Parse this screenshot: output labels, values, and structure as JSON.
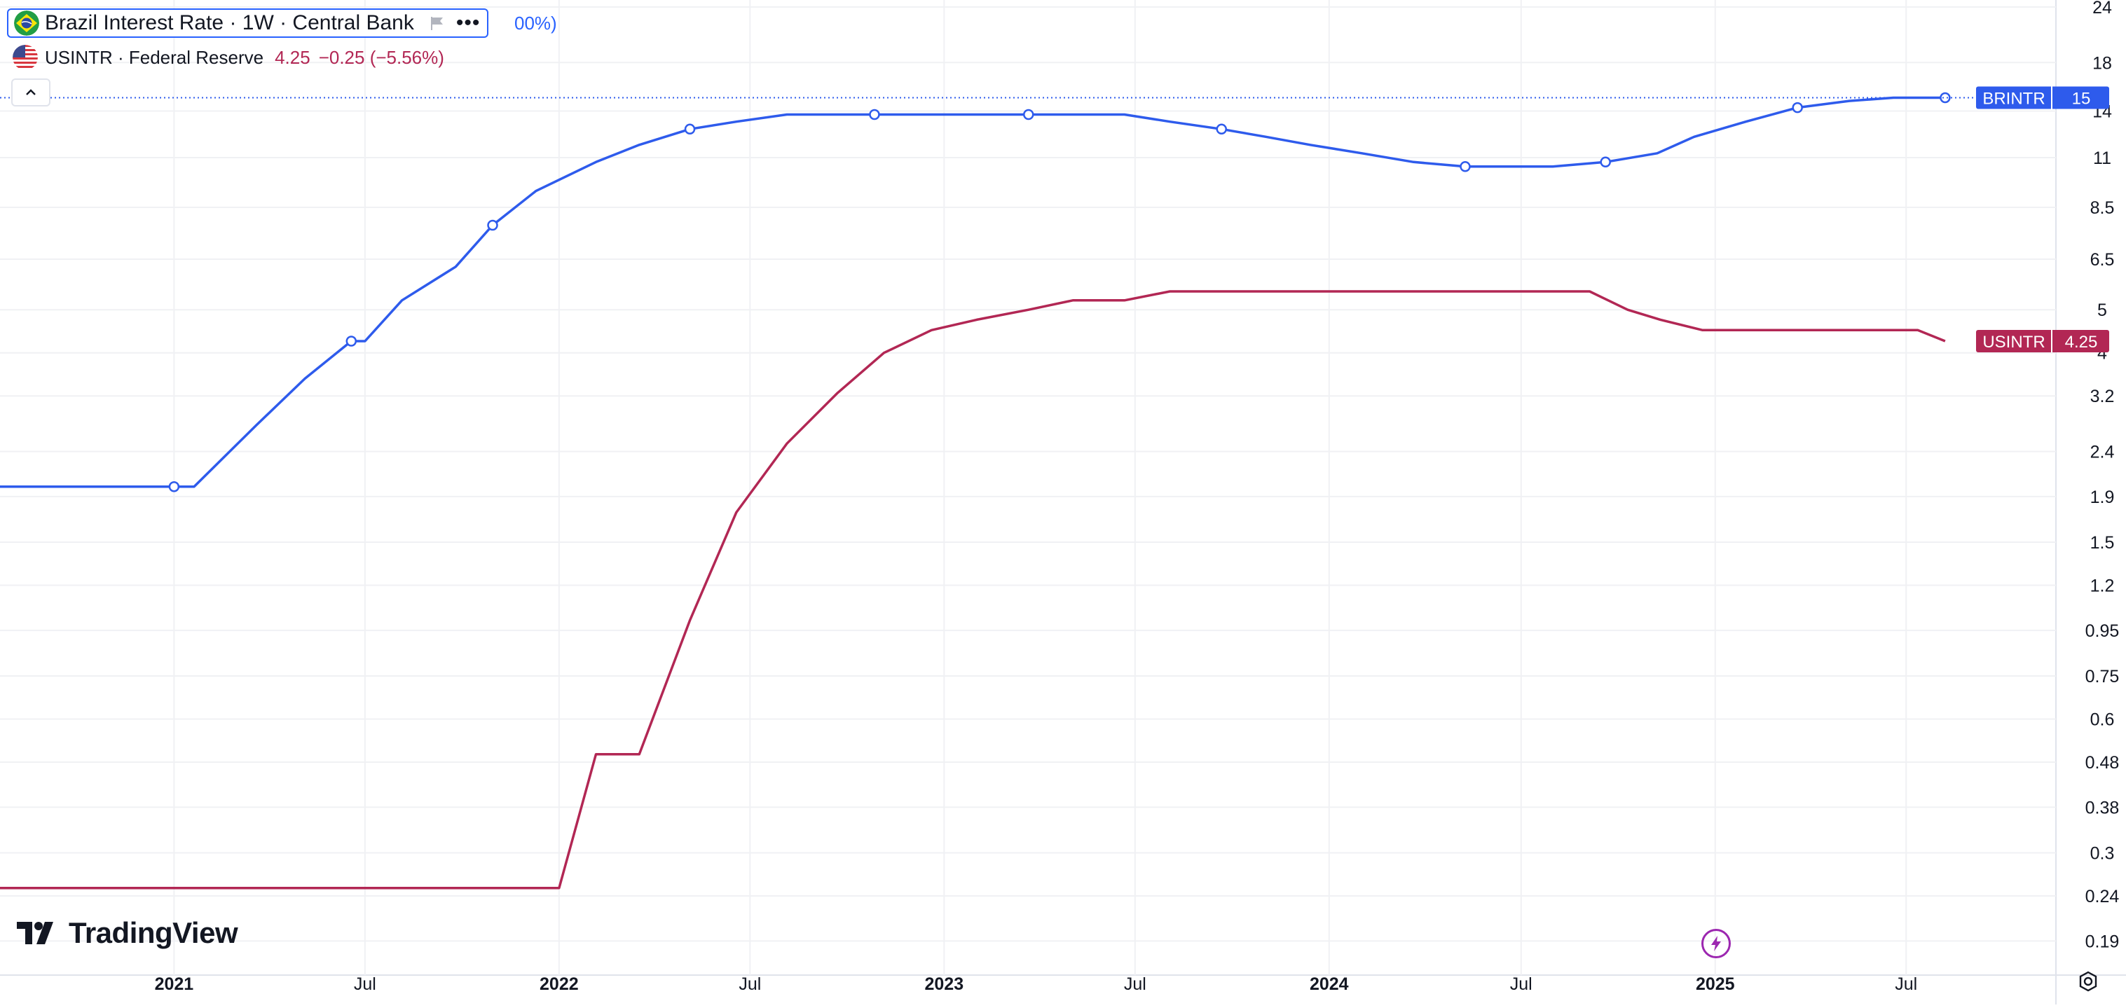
{
  "legend": {
    "main_title": "Brazil Interest Rate · 1W · Central Bank",
    "main_overflow": "00%)",
    "more_glyph": "•••",
    "secondary_title": "USINTR · Federal Reserve",
    "secondary_value": "4.25",
    "secondary_change": "−0.25 (−5.56%)"
  },
  "branding": {
    "logo_text": "TradingView"
  },
  "colors": {
    "brazil": "#2e5bec",
    "us": "#b22754",
    "grid": "#f0f1f4",
    "axis_text": "#131722"
  },
  "chart_data": {
    "type": "line",
    "y_scale": "log",
    "ylim": [
      0.17,
      24
    ],
    "xlim": [
      "2020-07-20",
      "2025-11-20"
    ],
    "y_ticks": [
      "24",
      "18",
      "14",
      "11",
      "8.5",
      "6.5",
      "5",
      "4",
      "3.2",
      "2.4",
      "1.9",
      "1.5",
      "1.2",
      "0.95",
      "0.75",
      "0.6",
      "0.48",
      "0.38",
      "0.3",
      "0.24",
      "0.19"
    ],
    "x_ticks": [
      {
        "date": "2021-01-01",
        "label": "2021",
        "bold": true
      },
      {
        "date": "2021-07-01",
        "label": "Jul",
        "bold": false
      },
      {
        "date": "2022-01-01",
        "label": "2022",
        "bold": true
      },
      {
        "date": "2022-07-01",
        "label": "Jul",
        "bold": false
      },
      {
        "date": "2023-01-01",
        "label": "2023",
        "bold": true
      },
      {
        "date": "2023-07-01",
        "label": "Jul",
        "bold": false
      },
      {
        "date": "2024-01-01",
        "label": "2024",
        "bold": true
      },
      {
        "date": "2024-07-01",
        "label": "Jul",
        "bold": false
      },
      {
        "date": "2025-01-01",
        "label": "2025",
        "bold": true
      },
      {
        "date": "2025-07-01",
        "label": "Jul",
        "bold": false
      }
    ],
    "series": [
      {
        "name": "BRINTR",
        "color": "#2e5bec",
        "last_value": "15",
        "x": [
          "2020-07-20",
          "2021-01-01",
          "2021-01-20",
          "2021-03-20",
          "2021-05-05",
          "2021-06-18",
          "2021-07-01",
          "2021-08-05",
          "2021-09-25",
          "2021-10-30",
          "2021-12-10",
          "2022-02-05",
          "2022-03-18",
          "2022-05-05",
          "2022-06-18",
          "2022-08-05",
          "2022-09-22",
          "2023-02-01",
          "2023-06-21",
          "2023-08-03",
          "2023-09-21",
          "2023-11-02",
          "2023-12-14",
          "2024-02-01",
          "2024-03-21",
          "2024-05-09",
          "2024-06-21",
          "2024-07-31",
          "2024-09-19",
          "2024-11-07",
          "2024-12-12",
          "2025-01-30",
          "2025-03-20",
          "2025-05-08",
          "2025-06-19",
          "2025-08-07"
        ],
        "y": [
          2.0,
          2.0,
          2.0,
          2.75,
          3.5,
          4.25,
          4.25,
          5.25,
          6.25,
          7.75,
          9.25,
          10.75,
          11.75,
          12.75,
          13.25,
          13.75,
          13.75,
          13.75,
          13.75,
          13.25,
          12.75,
          12.25,
          11.75,
          11.25,
          10.75,
          10.5,
          10.5,
          10.5,
          10.75,
          11.25,
          12.25,
          13.25,
          14.25,
          14.75,
          15.0,
          15.0
        ],
        "markers": [
          "2021-01-01",
          "2021-06-18",
          "2021-10-30",
          "2022-05-05",
          "2022-10-27",
          "2023-03-22",
          "2023-09-21",
          "2024-05-09",
          "2024-09-19",
          "2025-03-20",
          "2025-08-07"
        ]
      },
      {
        "name": "USINTR",
        "color": "#b22754",
        "last_value": "4.25",
        "x": [
          "2020-07-20",
          "2022-01-01",
          "2022-02-05",
          "2022-03-18",
          "2022-05-05",
          "2022-06-18",
          "2022-08-05",
          "2022-09-22",
          "2022-11-05",
          "2022-12-20",
          "2023-02-01",
          "2023-03-22",
          "2023-05-03",
          "2023-06-21",
          "2023-08-03",
          "2024-09-04",
          "2024-10-10",
          "2024-11-10",
          "2024-12-20",
          "2025-07-12",
          "2025-08-07"
        ],
        "y": [
          0.25,
          0.25,
          0.5,
          0.5,
          1.0,
          1.75,
          2.5,
          3.25,
          4.0,
          4.5,
          4.75,
          5.0,
          5.25,
          5.25,
          5.5,
          5.5,
          5.0,
          4.75,
          4.5,
          4.5,
          4.25
        ]
      }
    ]
  }
}
